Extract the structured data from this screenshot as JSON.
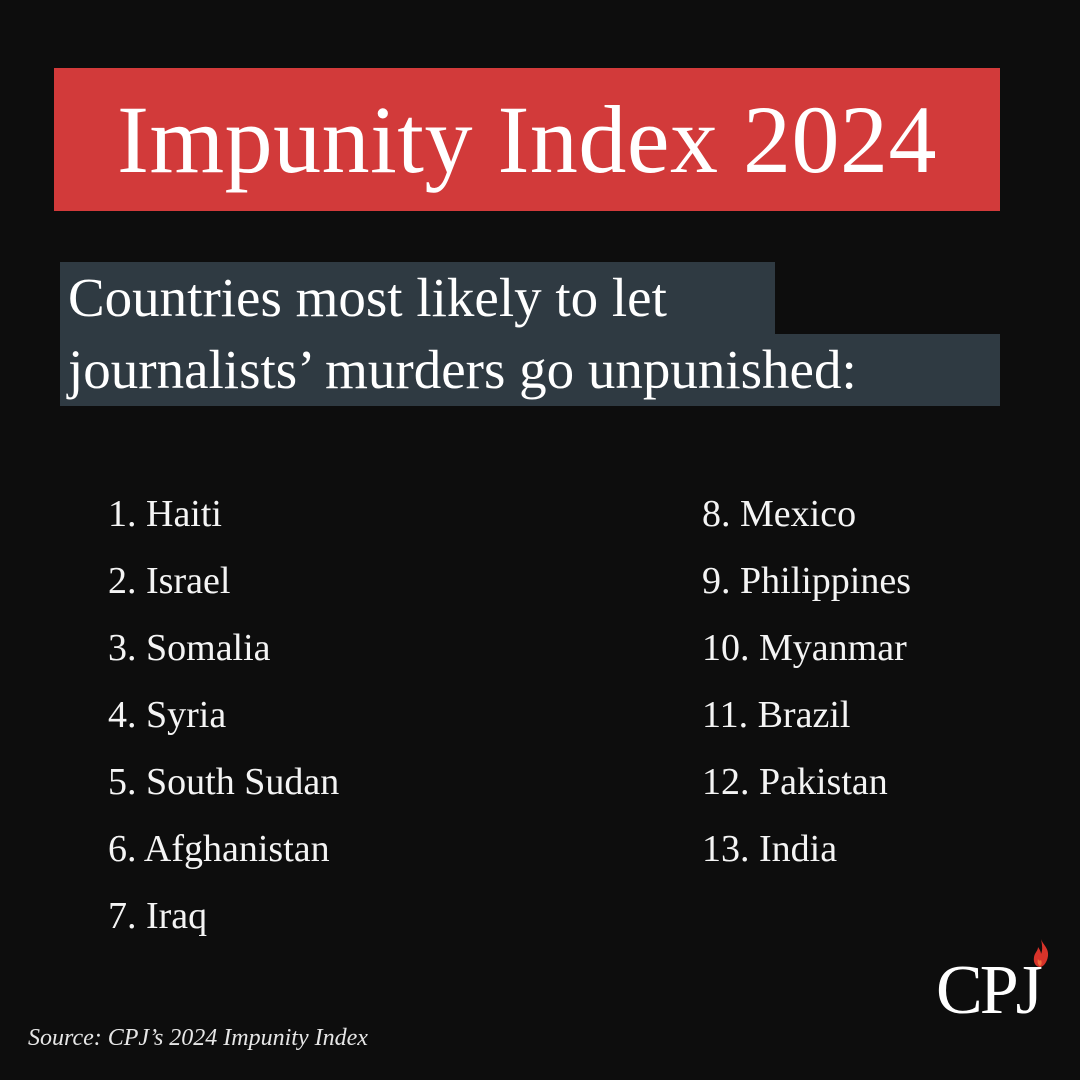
{
  "header": {
    "title": "Impunity Index 2024"
  },
  "subtitle": {
    "line1": "Countries most likely to let",
    "line2": "journalists’ murders go unpunished:"
  },
  "countries_left": [
    "1. Haiti",
    "2. Israel",
    "3. Somalia",
    "4. Syria",
    "5. South Sudan",
    "6. Afghanistan",
    "7. Iraq"
  ],
  "countries_right": [
    "8. Mexico",
    "9. Philippines",
    "10. Myanmar",
    "11. Brazil",
    "12. Pakistan",
    "13. India"
  ],
  "footer": {
    "source": "Source: CPJ’s 2024 Impunity Index"
  },
  "logo": {
    "text": "CPJ",
    "icon": "flame-icon"
  },
  "colors": {
    "background": "#0d0d0d",
    "title_box": "#d23a3a",
    "subtitle_box": "#2f3a42",
    "flame": "#d8332a"
  }
}
